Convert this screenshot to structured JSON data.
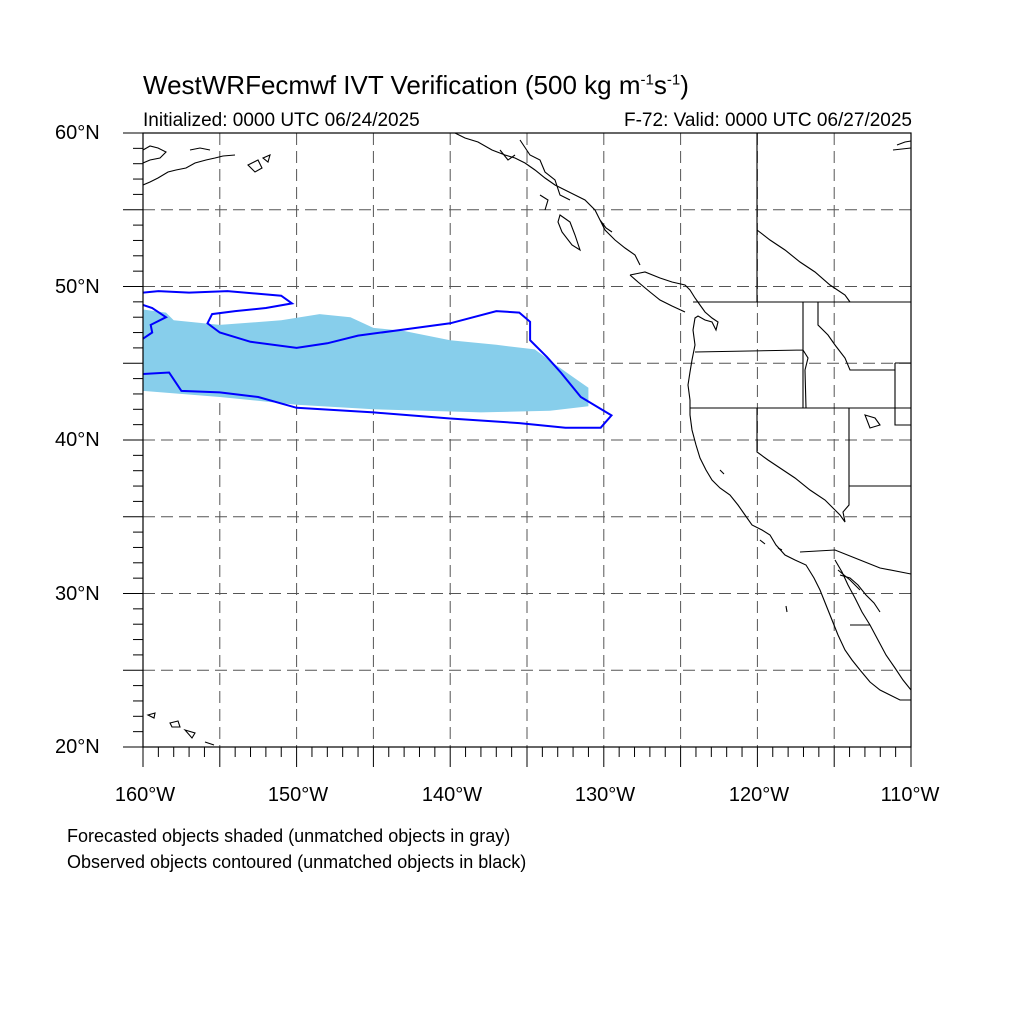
{
  "title": {
    "main": "WestWRFecmwf IVT Verification (500 kg m",
    "exp1": "-1",
    "mid": "s",
    "exp2": "-1",
    "end": ")"
  },
  "subtitle": {
    "initialized": "Initialized: 0000 UTC 06/24/2025",
    "valid": "F-72: Valid: 0000 UTC 06/27/2025"
  },
  "axes": {
    "lat_labels": [
      "60°N",
      "50°N",
      "40°N",
      "30°N",
      "20°N"
    ],
    "lon_labels": [
      "160°W",
      "150°W",
      "140°W",
      "130°W",
      "120°W",
      "110°W"
    ],
    "lat_range": [
      20,
      60
    ],
    "lon_range": [
      -160,
      -110
    ],
    "grid": "dashed, every 5 degrees"
  },
  "legend_notes": [
    "Forecasted objects shaded (unmatched objects in gray)",
    "Observed objects contoured (unmatched objects in black)"
  ],
  "colors": {
    "forecast_fill": "#87ceeb",
    "observed_contour": "#0000ff",
    "coastline": "#000000",
    "grid": "#555555"
  },
  "objects": {
    "forecast_shaded": [
      {
        "lon": -160.0,
        "lat": 48.5
      },
      {
        "lon": -158.5,
        "lat": 48.3
      },
      {
        "lon": -158.0,
        "lat": 47.8
      },
      {
        "lon": -155.0,
        "lat": 47.5
      },
      {
        "lon": -151.0,
        "lat": 47.8
      },
      {
        "lon": -148.5,
        "lat": 48.2
      },
      {
        "lon": -146.5,
        "lat": 48.0
      },
      {
        "lon": -145.0,
        "lat": 47.3
      },
      {
        "lon": -143.0,
        "lat": 47.1
      },
      {
        "lon": -140.0,
        "lat": 46.5
      },
      {
        "lon": -137.0,
        "lat": 46.2
      },
      {
        "lon": -134.5,
        "lat": 45.9
      },
      {
        "lon": -133.0,
        "lat": 44.8
      },
      {
        "lon": -131.0,
        "lat": 43.4
      },
      {
        "lon": -131.0,
        "lat": 42.2
      },
      {
        "lon": -133.5,
        "lat": 41.9
      },
      {
        "lon": -138.0,
        "lat": 41.8
      },
      {
        "lon": -145.0,
        "lat": 42.0
      },
      {
        "lon": -150.0,
        "lat": 42.3
      },
      {
        "lon": -155.0,
        "lat": 42.8
      },
      {
        "lon": -160.0,
        "lat": 43.2
      }
    ],
    "observed_contour_north": [
      {
        "lon": -160.0,
        "lat": 49.6
      },
      {
        "lon": -159.0,
        "lat": 49.7
      },
      {
        "lon": -157.0,
        "lat": 49.6
      },
      {
        "lon": -154.5,
        "lat": 49.7
      },
      {
        "lon": -151.0,
        "lat": 49.4
      },
      {
        "lon": -150.3,
        "lat": 48.9
      },
      {
        "lon": -152.0,
        "lat": 48.6
      },
      {
        "lon": -154.0,
        "lat": 48.4
      },
      {
        "lon": -155.5,
        "lat": 48.2
      },
      {
        "lon": -155.8,
        "lat": 47.6
      },
      {
        "lon": -155.0,
        "lat": 47.0
      },
      {
        "lon": -153.0,
        "lat": 46.4
      },
      {
        "lon": -150.0,
        "lat": 46.0
      },
      {
        "lon": -148.0,
        "lat": 46.3
      },
      {
        "lon": -146.0,
        "lat": 46.8
      },
      {
        "lon": -143.0,
        "lat": 47.2
      },
      {
        "lon": -140.0,
        "lat": 47.6
      },
      {
        "lon": -137.0,
        "lat": 48.4
      },
      {
        "lon": -135.5,
        "lat": 48.3
      },
      {
        "lon": -134.8,
        "lat": 47.7
      },
      {
        "lon": -134.8,
        "lat": 46.5
      },
      {
        "lon": -133.7,
        "lat": 45.4
      },
      {
        "lon": -132.8,
        "lat": 44.4
      },
      {
        "lon": -131.5,
        "lat": 42.8
      },
      {
        "lon": -129.5,
        "lat": 41.6
      },
      {
        "lon": -130.2,
        "lat": 40.8
      },
      {
        "lon": -132.5,
        "lat": 40.8
      },
      {
        "lon": -135.5,
        "lat": 41.1
      },
      {
        "lon": -140.0,
        "lat": 41.4
      },
      {
        "lon": -145.0,
        "lat": 41.8
      },
      {
        "lon": -150.0,
        "lat": 42.1
      },
      {
        "lon": -152.5,
        "lat": 42.8
      },
      {
        "lon": -155.0,
        "lat": 43.1
      },
      {
        "lon": -157.5,
        "lat": 43.2
      },
      {
        "lon": -158.3,
        "lat": 44.4
      },
      {
        "lon": -160.0,
        "lat": 44.3
      }
    ],
    "observed_contour_tip": [
      {
        "lon": -160.0,
        "lat": 48.8
      },
      {
        "lon": -159.4,
        "lat": 48.6
      },
      {
        "lon": -158.5,
        "lat": 48.0
      },
      {
        "lon": -159.5,
        "lat": 47.5
      },
      {
        "lon": -159.4,
        "lat": 47.0
      },
      {
        "lon": -160.0,
        "lat": 46.6
      }
    ]
  }
}
